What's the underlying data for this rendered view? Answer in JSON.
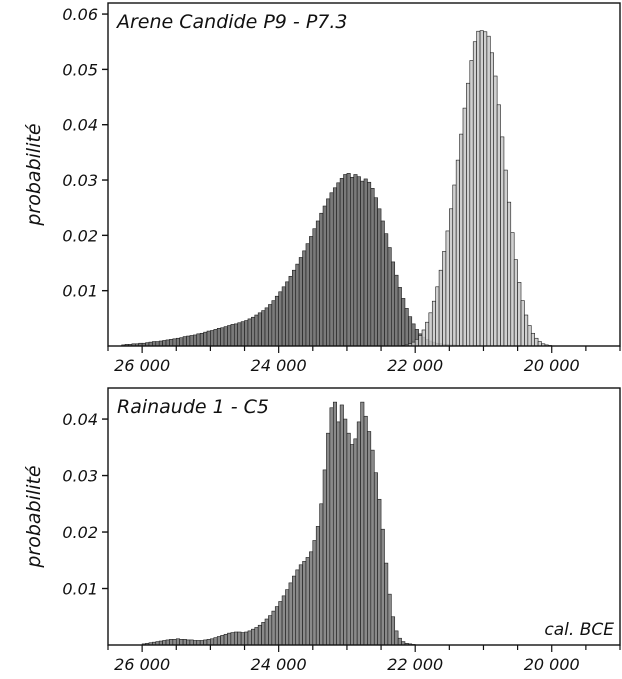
{
  "chart_data": [
    {
      "type": "bar",
      "title": "Arene Candide P9 - P7.3",
      "ylabel": "probabilité",
      "xlim": [
        26500,
        19000
      ],
      "ylim": [
        0,
        0.062
      ],
      "yticks": [
        "0.01",
        "0.02",
        "0.03",
        "0.04",
        "0.05",
        "0.06"
      ],
      "xticks": [
        "26 000",
        "24 000",
        "22 000",
        "20 000"
      ],
      "annotation": "",
      "series": [
        {
          "color": "#7a7a7a",
          "bins": {
            "start": 26300,
            "step": 50,
            "values": [
              0.0002,
              0.0003,
              0.0003,
              0.0004,
              0.0004,
              0.0005,
              0.0005,
              0.0006,
              0.0007,
              0.0008,
              0.0008,
              0.0009,
              0.001,
              0.0011,
              0.0012,
              0.0013,
              0.0014,
              0.0015,
              0.0017,
              0.0018,
              0.0019,
              0.002,
              0.0022,
              0.0023,
              0.0025,
              0.0027,
              0.0028,
              0.003,
              0.0032,
              0.0033,
              0.0035,
              0.0037,
              0.0039,
              0.004,
              0.0042,
              0.0044,
              0.0046,
              0.0049,
              0.0052,
              0.0056,
              0.006,
              0.0064,
              0.0069,
              0.0075,
              0.0082,
              0.009,
              0.0098,
              0.0107,
              0.0116,
              0.0126,
              0.0137,
              0.0148,
              0.016,
              0.0172,
              0.0185,
              0.0198,
              0.0212,
              0.0226,
              0.024,
              0.0253,
              0.0266,
              0.0277,
              0.0286,
              0.0295,
              0.0303,
              0.031,
              0.0312,
              0.0305,
              0.031,
              0.0306,
              0.0298,
              0.0302,
              0.0296,
              0.0285,
              0.0268,
              0.0248,
              0.0226,
              0.0203,
              0.0178,
              0.0152,
              0.0128,
              0.0106,
              0.0086,
              0.0068,
              0.0053,
              0.004,
              0.003,
              0.0022,
              0.0016,
              0.0012,
              0.0009,
              0.0007,
              0.0005,
              0.0004,
              0.0003,
              0.0003,
              0.0002,
              0.0002,
              0.0001,
              0.0001
            ]
          }
        },
        {
          "color": "#c8c8c8",
          "bins": {
            "start": 22200,
            "step": 50,
            "values": [
              0.0001,
              0.0002,
              0.0004,
              0.0007,
              0.0012,
              0.0019,
              0.0029,
              0.0043,
              0.006,
              0.0081,
              0.0107,
              0.0137,
              0.0171,
              0.0208,
              0.0248,
              0.0291,
              0.0336,
              0.0383,
              0.043,
              0.0475,
              0.0516,
              0.055,
              0.0569,
              0.057,
              0.0568,
              0.056,
              0.053,
              0.0488,
              0.0436,
              0.0378,
              0.0318,
              0.026,
              0.0205,
              0.0156,
              0.0115,
              0.0082,
              0.0056,
              0.0037,
              0.0023,
              0.0014,
              0.0008,
              0.0004,
              0.0002,
              0.0001
            ]
          }
        }
      ]
    },
    {
      "type": "bar",
      "title": "Rainaude 1 - C5",
      "ylabel": "probabilité",
      "xlim": [
        26500,
        19000
      ],
      "ylim": [
        0,
        0.0455
      ],
      "yticks": [
        "0.01",
        "0.02",
        "0.03",
        "0.04"
      ],
      "xticks": [
        "26 000",
        "24 000",
        "22 000",
        "20 000"
      ],
      "annotation": "cal. BCE",
      "series": [
        {
          "color": "#8a8a8a",
          "bins": {
            "start": 26000,
            "step": 50,
            "values": [
              0.0002,
              0.0003,
              0.0004,
              0.0005,
              0.0006,
              0.0007,
              0.0008,
              0.0009,
              0.001,
              0.001,
              0.0011,
              0.001,
              0.001,
              0.0009,
              0.0009,
              0.0008,
              0.0008,
              0.0008,
              0.0009,
              0.001,
              0.0011,
              0.0013,
              0.0015,
              0.0017,
              0.0019,
              0.0021,
              0.0022,
              0.0023,
              0.0023,
              0.0022,
              0.0023,
              0.0025,
              0.0028,
              0.0031,
              0.0035,
              0.004,
              0.0046,
              0.0052,
              0.006,
              0.0068,
              0.0077,
              0.0087,
              0.0098,
              0.011,
              0.0122,
              0.0133,
              0.0142,
              0.0148,
              0.0155,
              0.0165,
              0.0185,
              0.021,
              0.025,
              0.031,
              0.0375,
              0.042,
              0.043,
              0.0395,
              0.0425,
              0.04,
              0.0375,
              0.0355,
              0.0365,
              0.0395,
              0.043,
              0.0405,
              0.0378,
              0.0345,
              0.0305,
              0.0258,
              0.0205,
              0.0145,
              0.009,
              0.005,
              0.0025,
              0.0012,
              0.0006,
              0.0003,
              0.0002,
              0.0001
            ]
          }
        }
      ]
    }
  ]
}
